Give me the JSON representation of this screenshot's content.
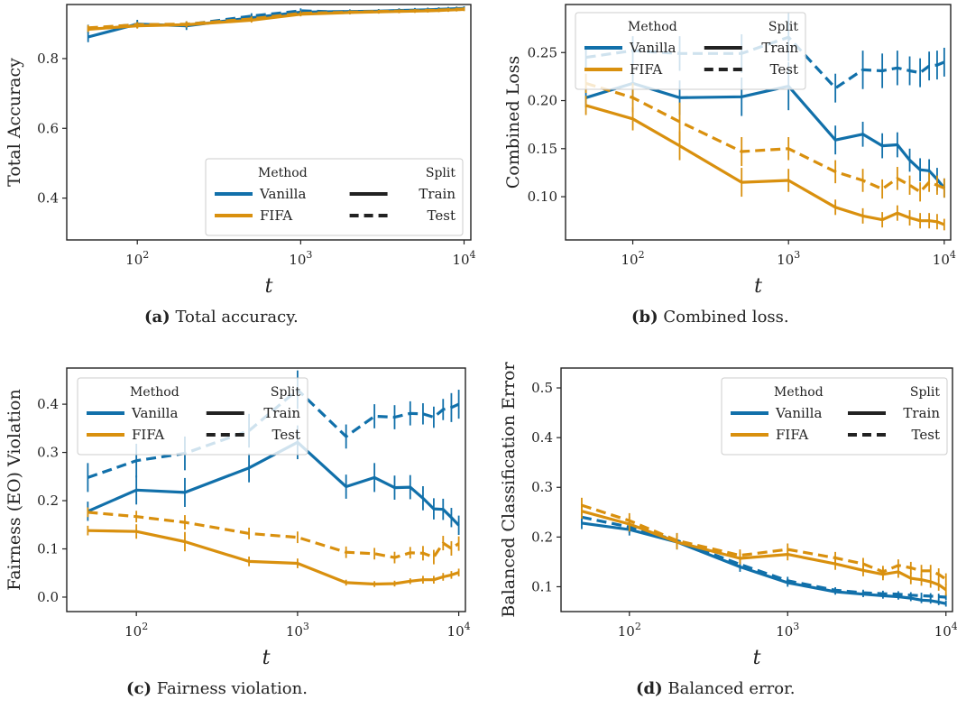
{
  "colors": {
    "vanilla": "#1170aa",
    "fifa": "#d9900e",
    "axis": "#222222",
    "legend_border": "#cccccc"
  },
  "legend": {
    "method_title": "Method",
    "split_title": "Split",
    "methods": [
      "Vanilla",
      "FIFA"
    ],
    "splits": [
      "Train",
      "Test"
    ]
  },
  "captions": [
    {
      "label": "(a)",
      "text": "Total accuracy."
    },
    {
      "label": "(b)",
      "text": "Combined loss."
    },
    {
      "label": "(c)",
      "text": "Fairness violation."
    },
    {
      "label": "(d)",
      "text": "Balanced error."
    }
  ],
  "chart_data": [
    {
      "type": "line",
      "title": "",
      "xlabel": "t",
      "ylabel": "Total Accuracy",
      "xscale": "log",
      "xlim": [
        37,
        11000
      ],
      "ylim": [
        0.28,
        0.955
      ],
      "xticks": [
        100,
        1000,
        10000
      ],
      "xtick_labels": [
        "10^2",
        "10^3",
        "10^4"
      ],
      "yticks": [
        0.4,
        0.6,
        0.8
      ],
      "ytick_labels": [
        "0.4",
        "0.6",
        "0.8"
      ],
      "legend_position": "lower-right",
      "x": [
        50,
        100,
        200,
        500,
        1000,
        2000,
        3000,
        4000,
        5000,
        6000,
        7000,
        8000,
        9000,
        10000
      ],
      "series": [
        {
          "name": "Vanilla",
          "split": "Train",
          "values": [
            0.862,
            0.899,
            0.894,
            0.917,
            0.933,
            0.935,
            0.936,
            0.938,
            0.939,
            0.94,
            0.941,
            0.942,
            0.943,
            0.944
          ],
          "err": [
            0.015,
            0.012,
            0.012,
            0.01,
            0.008,
            0.006,
            0.006,
            0.006,
            0.006,
            0.006,
            0.006,
            0.006,
            0.006,
            0.006
          ]
        },
        {
          "name": "Vanilla",
          "split": "Test",
          "values": [
            0.885,
            0.898,
            0.897,
            0.922,
            0.937,
            0.933,
            0.935,
            0.937,
            0.938,
            0.939,
            0.94,
            0.941,
            0.942,
            0.943
          ],
          "err": [
            0.012,
            0.01,
            0.01,
            0.008,
            0.007,
            0.006,
            0.006,
            0.006,
            0.006,
            0.006,
            0.006,
            0.006,
            0.006,
            0.006
          ]
        },
        {
          "name": "FIFA",
          "split": "Train",
          "values": [
            0.884,
            0.894,
            0.897,
            0.91,
            0.927,
            0.932,
            0.934,
            0.935,
            0.936,
            0.937,
            0.938,
            0.939,
            0.94,
            0.941
          ],
          "err": [
            0.008,
            0.008,
            0.008,
            0.007,
            0.006,
            0.005,
            0.005,
            0.005,
            0.005,
            0.005,
            0.005,
            0.005,
            0.005,
            0.005
          ]
        },
        {
          "name": "FIFA",
          "split": "Test",
          "values": [
            0.888,
            0.897,
            0.899,
            0.914,
            0.93,
            0.933,
            0.935,
            0.936,
            0.937,
            0.938,
            0.939,
            0.94,
            0.941,
            0.942
          ],
          "err": [
            0.008,
            0.008,
            0.008,
            0.007,
            0.006,
            0.005,
            0.005,
            0.005,
            0.005,
            0.005,
            0.005,
            0.005,
            0.005,
            0.005
          ]
        }
      ]
    },
    {
      "type": "line",
      "title": "",
      "xlabel": "t",
      "ylabel": "Combined Loss",
      "xscale": "log",
      "xlim": [
        37,
        11000
      ],
      "ylim": [
        0.055,
        0.3
      ],
      "xticks": [
        100,
        1000,
        10000
      ],
      "xtick_labels": [
        "10^2",
        "10^3",
        "10^4"
      ],
      "yticks": [
        0.1,
        0.15,
        0.2,
        0.25
      ],
      "ytick_labels": [
        "0.10",
        "0.15",
        "0.20",
        "0.25"
      ],
      "legend_position": "upper-left",
      "x": [
        50,
        100,
        200,
        500,
        1000,
        2000,
        3000,
        4000,
        5000,
        6000,
        7000,
        8000,
        9000,
        10000
      ],
      "series": [
        {
          "name": "Vanilla",
          "split": "Train",
          "values": [
            0.203,
            0.218,
            0.203,
            0.204,
            0.215,
            0.159,
            0.165,
            0.153,
            0.154,
            0.138,
            0.128,
            0.127,
            0.118,
            0.109
          ],
          "err": [
            0.01,
            0.015,
            0.018,
            0.02,
            0.025,
            0.015,
            0.013,
            0.013,
            0.013,
            0.012,
            0.012,
            0.012,
            0.012,
            0.01
          ]
        },
        {
          "name": "Vanilla",
          "split": "Test",
          "values": [
            0.245,
            0.252,
            0.249,
            0.249,
            0.266,
            0.213,
            0.232,
            0.231,
            0.234,
            0.231,
            0.229,
            0.236,
            0.237,
            0.24
          ],
          "err": [
            0.012,
            0.015,
            0.018,
            0.02,
            0.025,
            0.015,
            0.02,
            0.018,
            0.018,
            0.015,
            0.015,
            0.015,
            0.015,
            0.015
          ]
        },
        {
          "name": "FIFA",
          "split": "Train",
          "values": [
            0.195,
            0.181,
            0.153,
            0.115,
            0.117,
            0.089,
            0.08,
            0.076,
            0.083,
            0.078,
            0.075,
            0.075,
            0.074,
            0.071
          ],
          "err": [
            0.01,
            0.012,
            0.015,
            0.015,
            0.012,
            0.008,
            0.008,
            0.008,
            0.008,
            0.008,
            0.008,
            0.008,
            0.008,
            0.006
          ]
        },
        {
          "name": "FIFA",
          "split": "Test",
          "values": [
            0.218,
            0.203,
            0.178,
            0.147,
            0.15,
            0.126,
            0.117,
            0.108,
            0.119,
            0.112,
            0.105,
            0.115,
            0.112,
            0.109
          ],
          "err": [
            0.01,
            0.015,
            0.02,
            0.015,
            0.012,
            0.012,
            0.012,
            0.01,
            0.012,
            0.01,
            0.01,
            0.01,
            0.01,
            0.01
          ]
        }
      ]
    },
    {
      "type": "line",
      "title": "",
      "xlabel": "t",
      "ylabel": "Fairness (EO) Violation",
      "xscale": "log",
      "xlim": [
        37,
        11000
      ],
      "ylim": [
        -0.03,
        0.475
      ],
      "xticks": [
        100,
        1000,
        10000
      ],
      "xtick_labels": [
        "10^2",
        "10^3",
        "10^4"
      ],
      "yticks": [
        0.0,
        0.1,
        0.2,
        0.3,
        0.4
      ],
      "ytick_labels": [
        "0.0",
        "0.1",
        "0.2",
        "0.3",
        "0.4"
      ],
      "legend_position": "upper-left",
      "x": [
        50,
        100,
        200,
        500,
        1000,
        2000,
        3000,
        4000,
        5000,
        6000,
        7000,
        8000,
        9000,
        10000
      ],
      "series": [
        {
          "name": "Vanilla",
          "split": "Train",
          "values": [
            0.178,
            0.222,
            0.217,
            0.268,
            0.321,
            0.229,
            0.248,
            0.227,
            0.228,
            0.205,
            0.183,
            0.182,
            0.165,
            0.149
          ],
          "err": [
            0.02,
            0.03,
            0.03,
            0.03,
            0.035,
            0.025,
            0.03,
            0.025,
            0.025,
            0.025,
            0.022,
            0.022,
            0.02,
            0.02
          ]
        },
        {
          "name": "Vanilla",
          "split": "Test",
          "values": [
            0.248,
            0.283,
            0.298,
            0.345,
            0.43,
            0.333,
            0.375,
            0.373,
            0.381,
            0.38,
            0.373,
            0.389,
            0.393,
            0.4
          ],
          "err": [
            0.03,
            0.035,
            0.035,
            0.035,
            0.04,
            0.025,
            0.025,
            0.025,
            0.025,
            0.022,
            0.022,
            0.022,
            0.03,
            0.03
          ]
        },
        {
          "name": "FIFA",
          "split": "Train",
          "values": [
            0.138,
            0.136,
            0.115,
            0.074,
            0.07,
            0.03,
            0.027,
            0.028,
            0.033,
            0.036,
            0.036,
            0.042,
            0.046,
            0.051
          ],
          "err": [
            0.01,
            0.015,
            0.02,
            0.01,
            0.01,
            0.006,
            0.006,
            0.006,
            0.006,
            0.008,
            0.008,
            0.008,
            0.008,
            0.008
          ]
        },
        {
          "name": "FIFA",
          "split": "Test",
          "values": [
            0.176,
            0.167,
            0.155,
            0.132,
            0.124,
            0.093,
            0.09,
            0.082,
            0.092,
            0.091,
            0.083,
            0.112,
            0.101,
            0.111
          ],
          "err": [
            0.01,
            0.012,
            0.015,
            0.012,
            0.012,
            0.012,
            0.012,
            0.012,
            0.012,
            0.015,
            0.015,
            0.015,
            0.015,
            0.015
          ]
        }
      ]
    },
    {
      "type": "line",
      "title": "",
      "xlabel": "t",
      "ylabel": "Balanced Classification Error",
      "xscale": "log",
      "xlim": [
        37,
        11000
      ],
      "ylim": [
        0.05,
        0.54
      ],
      "xticks": [
        100,
        1000,
        10000
      ],
      "xtick_labels": [
        "10^2",
        "10^3",
        "10^4"
      ],
      "yticks": [
        0.1,
        0.2,
        0.3,
        0.4,
        0.5
      ],
      "ytick_labels": [
        "0.1",
        "0.2",
        "0.3",
        "0.4",
        "0.5"
      ],
      "legend_position": "upper-right",
      "x": [
        50,
        100,
        200,
        500,
        1000,
        2000,
        3000,
        4000,
        5000,
        6000,
        7000,
        8000,
        9000,
        10000
      ],
      "series": [
        {
          "name": "Vanilla",
          "split": "Train",
          "values": [
            0.228,
            0.215,
            0.19,
            0.14,
            0.108,
            0.09,
            0.085,
            0.082,
            0.08,
            0.077,
            0.073,
            0.072,
            0.069,
            0.066
          ],
          "err": [
            0.012,
            0.012,
            0.015,
            0.01,
            0.008,
            0.006,
            0.006,
            0.006,
            0.006,
            0.006,
            0.006,
            0.006,
            0.006,
            0.006
          ]
        },
        {
          "name": "Vanilla",
          "split": "Test",
          "values": [
            0.24,
            0.22,
            0.193,
            0.145,
            0.112,
            0.093,
            0.088,
            0.086,
            0.085,
            0.083,
            0.082,
            0.081,
            0.08,
            0.079
          ],
          "err": [
            0.012,
            0.012,
            0.015,
            0.01,
            0.008,
            0.006,
            0.006,
            0.006,
            0.006,
            0.006,
            0.006,
            0.006,
            0.006,
            0.006
          ]
        },
        {
          "name": "FIFA",
          "split": "Train",
          "values": [
            0.252,
            0.226,
            0.19,
            0.157,
            0.165,
            0.146,
            0.133,
            0.125,
            0.13,
            0.117,
            0.114,
            0.11,
            0.104,
            0.094
          ],
          "err": [
            0.015,
            0.015,
            0.015,
            0.012,
            0.012,
            0.012,
            0.012,
            0.012,
            0.012,
            0.012,
            0.012,
            0.012,
            0.012,
            0.012
          ]
        },
        {
          "name": "FIFA",
          "split": "Test",
          "values": [
            0.264,
            0.233,
            0.193,
            0.163,
            0.175,
            0.158,
            0.146,
            0.13,
            0.143,
            0.138,
            0.132,
            0.132,
            0.125,
            0.115
          ],
          "err": [
            0.015,
            0.015,
            0.015,
            0.012,
            0.012,
            0.012,
            0.012,
            0.012,
            0.012,
            0.012,
            0.012,
            0.012,
            0.012,
            0.012
          ]
        }
      ]
    }
  ]
}
